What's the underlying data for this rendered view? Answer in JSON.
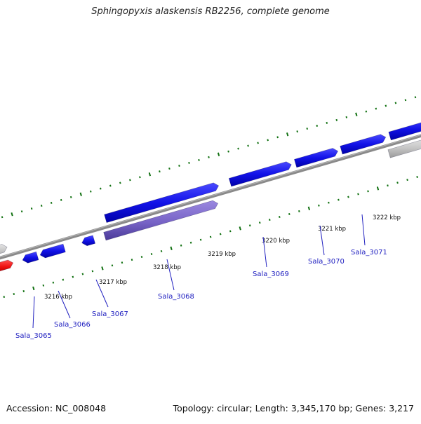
{
  "title": "Sphingopyxis alaskensis RB2256, complete genome",
  "footer": {
    "accession": "Accession: NC_008048",
    "topology": "Topology: circular; Length: 3,345,170 bp; Genes: 3,217"
  },
  "colors": {
    "background": "#ffffff",
    "backbone": "#808080",
    "forward_gene": "#1010e0",
    "selected_gene": "#7b66c8",
    "other_gene": "#c8c8c8",
    "highlight_gene": "#ee1010",
    "tick": "#107010",
    "gene_label": "#2020c0"
  },
  "ruler": {
    "ticks": [
      {
        "label": "3216 kbp"
      },
      {
        "label": "3217 kbp"
      },
      {
        "label": "3218 kbp"
      },
      {
        "label": "3219 kbp"
      },
      {
        "label": "3220 kbp"
      },
      {
        "label": "3221 kbp"
      },
      {
        "label": "3222 kbp"
      }
    ]
  },
  "genes": [
    {
      "label": "Sala_3065"
    },
    {
      "label": "Sala_3066"
    },
    {
      "label": "Sala_3067"
    },
    {
      "label": "Sala_3068"
    },
    {
      "label": "Sala_3069"
    },
    {
      "label": "Sala_3070"
    },
    {
      "label": "Sala_3071"
    }
  ]
}
